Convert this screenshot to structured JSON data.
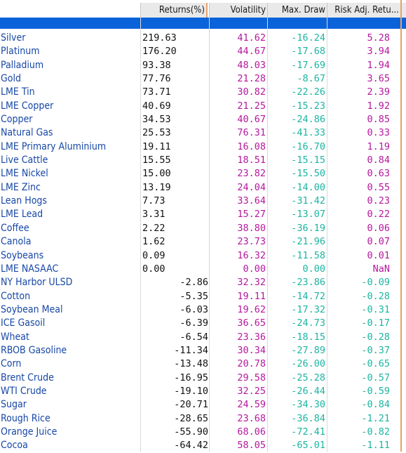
{
  "header": {
    "col_returns": "Returns(%)",
    "col_volatility": "Volatility",
    "col_maxdraw": "Max. Draw",
    "col_riskadj": "Risk Adj. Retu..."
  },
  "colors": {
    "name": "#1747a6",
    "returns": "#111111",
    "volatility": "#b5179e",
    "maxdraw": "#1bb5a0",
    "selection_band": "#0b63d9"
  },
  "rows": [
    {
      "name": "Silver",
      "ret": "219.63",
      "vol": "41.62",
      "mdd": "-16.24",
      "rar": "5.28"
    },
    {
      "name": "Platinum",
      "ret": "176.20",
      "vol": "44.67",
      "mdd": "-17.68",
      "rar": "3.94"
    },
    {
      "name": "Palladium",
      "ret": "93.38",
      "vol": "48.03",
      "mdd": "-17.69",
      "rar": "1.94"
    },
    {
      "name": "Gold",
      "ret": "77.76",
      "vol": "21.28",
      "mdd": "-8.67",
      "rar": "3.65"
    },
    {
      "name": "LME Tin",
      "ret": "73.71",
      "vol": "30.82",
      "mdd": "-22.26",
      "rar": "2.39"
    },
    {
      "name": "LME Copper",
      "ret": "40.69",
      "vol": "21.25",
      "mdd": "-15.23",
      "rar": "1.92"
    },
    {
      "name": "Copper",
      "ret": "34.53",
      "vol": "40.67",
      "mdd": "-24.86",
      "rar": "0.85"
    },
    {
      "name": "Natural Gas",
      "ret": "25.53",
      "vol": "76.31",
      "mdd": "-41.33",
      "rar": "0.33"
    },
    {
      "name": "LME Primary Aluminium",
      "ret": "19.11",
      "vol": "16.08",
      "mdd": "-16.70",
      "rar": "1.19"
    },
    {
      "name": "Live Cattle",
      "ret": "15.55",
      "vol": "18.51",
      "mdd": "-15.15",
      "rar": "0.84"
    },
    {
      "name": "LME Nickel",
      "ret": "15.00",
      "vol": "23.82",
      "mdd": "-15.50",
      "rar": "0.63"
    },
    {
      "name": "LME Zinc",
      "ret": "13.19",
      "vol": "24.04",
      "mdd": "-14.00",
      "rar": "0.55"
    },
    {
      "name": "Lean Hogs",
      "ret": "7.73",
      "vol": "33.64",
      "mdd": "-31.42",
      "rar": "0.23"
    },
    {
      "name": "LME Lead",
      "ret": "3.31",
      "vol": "15.27",
      "mdd": "-13.07",
      "rar": "0.22"
    },
    {
      "name": "Coffee",
      "ret": "2.22",
      "vol": "38.80",
      "mdd": "-36.19",
      "rar": "0.06"
    },
    {
      "name": "Canola",
      "ret": "1.62",
      "vol": "23.73",
      "mdd": "-21.96",
      "rar": "0.07"
    },
    {
      "name": "Soybeans",
      "ret": "0.09",
      "vol": "16.32",
      "mdd": "-11.58",
      "rar": "0.01"
    },
    {
      "name": "LME NASAAC",
      "ret": "0.00",
      "vol": "0.00",
      "mdd": "0.00",
      "rar": "NaN"
    },
    {
      "name": "NY Harbor ULSD",
      "ret": "-2.86",
      "vol": "32.32",
      "mdd": "-23.86",
      "rar": "-0.09"
    },
    {
      "name": "Cotton",
      "ret": "-5.35",
      "vol": "19.11",
      "mdd": "-14.72",
      "rar": "-0.28"
    },
    {
      "name": "Soybean Meal",
      "ret": "-6.03",
      "vol": "19.62",
      "mdd": "-17.32",
      "rar": "-0.31"
    },
    {
      "name": "ICE Gasoil",
      "ret": "-6.39",
      "vol": "36.65",
      "mdd": "-24.73",
      "rar": "-0.17"
    },
    {
      "name": "Wheat",
      "ret": "-6.54",
      "vol": "23.36",
      "mdd": "-18.15",
      "rar": "-0.28"
    },
    {
      "name": "RBOB Gasoline",
      "ret": "-11.34",
      "vol": "30.34",
      "mdd": "-27.89",
      "rar": "-0.37"
    },
    {
      "name": "Corn",
      "ret": "-13.48",
      "vol": "20.78",
      "mdd": "-26.00",
      "rar": "-0.65"
    },
    {
      "name": "Brent Crude",
      "ret": "-16.95",
      "vol": "29.58",
      "mdd": "-25.28",
      "rar": "-0.57"
    },
    {
      "name": "WTI Crude",
      "ret": "-19.10",
      "vol": "32.25",
      "mdd": "-26.44",
      "rar": "-0.59"
    },
    {
      "name": "Sugar",
      "ret": "-20.71",
      "vol": "24.59",
      "mdd": "-34.30",
      "rar": "-0.84"
    },
    {
      "name": "Rough Rice",
      "ret": "-28.65",
      "vol": "23.68",
      "mdd": "-36.84",
      "rar": "-1.21"
    },
    {
      "name": "Orange Juice",
      "ret": "-55.90",
      "vol": "68.06",
      "mdd": "-72.41",
      "rar": "-0.82"
    },
    {
      "name": "Cocoa",
      "ret": "-64.42",
      "vol": "58.05",
      "mdd": "-65.01",
      "rar": "-1.11"
    }
  ]
}
